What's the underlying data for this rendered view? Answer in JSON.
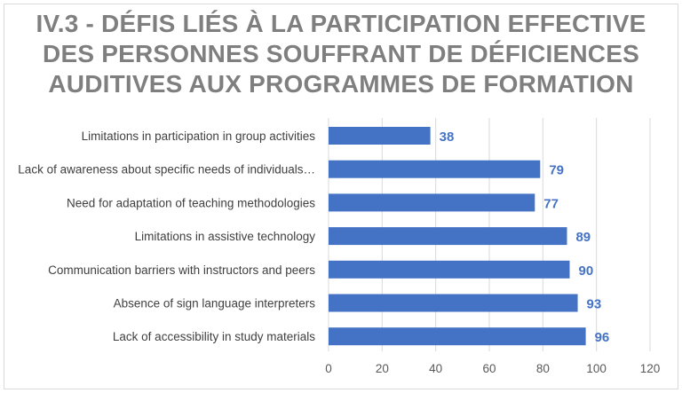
{
  "chart_data": {
    "type": "bar",
    "orientation": "horizontal",
    "title_lines": [
      "IV.3 - DÉFIS LIÉS À LA PARTICIPATION EFFECTIVE",
      "DES PERSONNES SOUFFRANT DE DÉFICIENCES",
      "AUDITIVES AUX PROGRAMMES DE FORMATION"
    ],
    "categories": [
      "Limitations in participation in group activities",
      "Lack of awareness about specific needs of individuals…",
      "Need for adaptation of teaching methodologies",
      "Limitations in assistive technology",
      "Communication barriers with instructors and peers",
      "Absence of sign language interpreters",
      "Lack of accessibility in study materials"
    ],
    "values": [
      38,
      79,
      77,
      89,
      90,
      93,
      96
    ],
    "xlim": [
      0,
      120
    ],
    "xticks": [
      0,
      20,
      40,
      60,
      80,
      100,
      120
    ],
    "grid": "vertical",
    "data_labels": true,
    "xlabel": "",
    "ylabel": ""
  },
  "colors": {
    "bar": "#4472c4",
    "title": "#7f7f7f",
    "grid": "#d9d9d9"
  }
}
